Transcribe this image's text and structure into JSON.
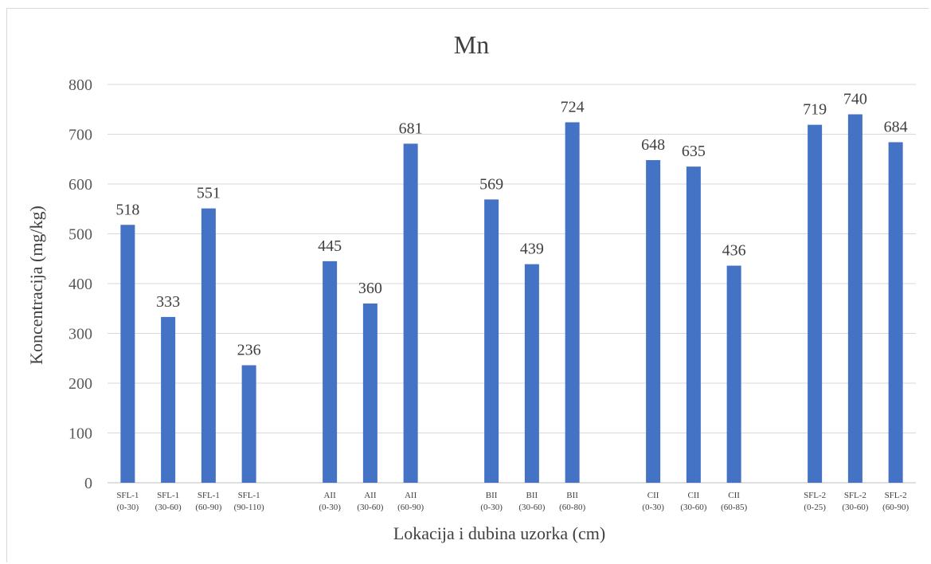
{
  "chart_data": {
    "type": "bar",
    "title": "Mn",
    "xlabel": "Lokacija i dubina uzorka (cm)",
    "ylabel": "Koncentracija (mg/kg)",
    "ylim": [
      0,
      800
    ],
    "yticks": [
      0,
      100,
      200,
      300,
      400,
      500,
      600,
      700,
      800
    ],
    "grid": true,
    "legend": "none",
    "bar_color": "#4472c4",
    "categories": [
      {
        "name": "SFL-1",
        "depth": "(0-30)"
      },
      {
        "name": "SFL-1",
        "depth": "(30-60)"
      },
      {
        "name": "SFL-1",
        "depth": "(60-90)"
      },
      {
        "name": "SFL-1",
        "depth": "(90-110)"
      },
      {
        "name": "",
        "depth": ""
      },
      {
        "name": "AII",
        "depth": "(0-30)"
      },
      {
        "name": "AII",
        "depth": "(30-60)"
      },
      {
        "name": "AII",
        "depth": "(60-90)"
      },
      {
        "name": "",
        "depth": ""
      },
      {
        "name": "BII",
        "depth": "(0-30)"
      },
      {
        "name": "BII",
        "depth": "(30-60)"
      },
      {
        "name": "BII",
        "depth": "(60-80)"
      },
      {
        "name": "",
        "depth": ""
      },
      {
        "name": "CII",
        "depth": "(0-30)"
      },
      {
        "name": "CII",
        "depth": "(30-60)"
      },
      {
        "name": "CII",
        "depth": "(60-85)"
      },
      {
        "name": "",
        "depth": ""
      },
      {
        "name": "SFL-2",
        "depth": "(0-25)"
      },
      {
        "name": "SFL-2",
        "depth": "(30-60)"
      },
      {
        "name": "SFL-2",
        "depth": "(60-90)"
      }
    ],
    "values": [
      518,
      333,
      551,
      236,
      null,
      445,
      360,
      681,
      null,
      569,
      439,
      724,
      null,
      648,
      635,
      436,
      null,
      719,
      740,
      684
    ]
  }
}
